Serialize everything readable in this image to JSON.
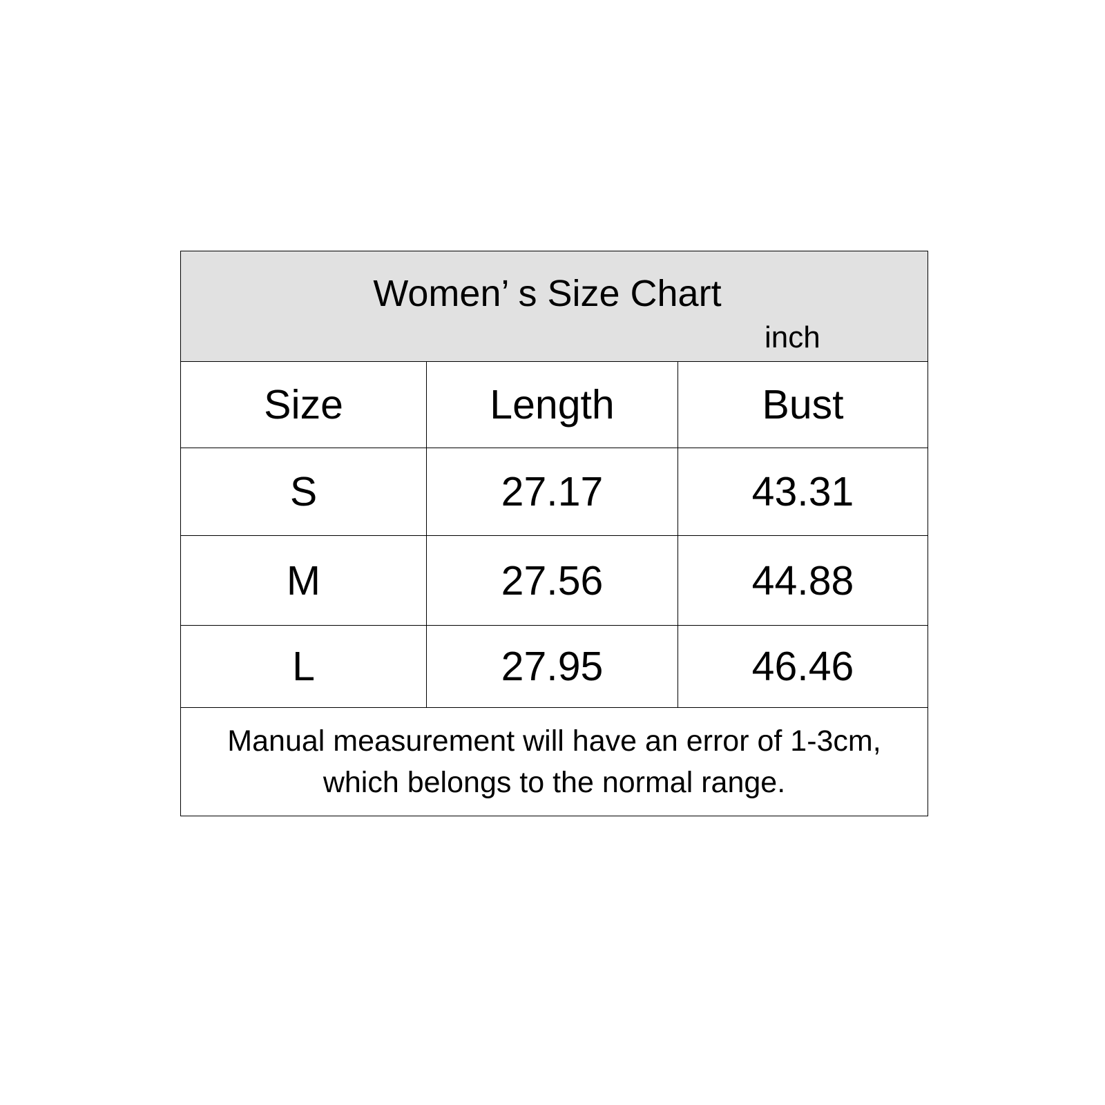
{
  "title": "Women’ s Size Chart",
  "unit": "inch",
  "headers": [
    "Size",
    "Length",
    "Bust"
  ],
  "rows": [
    [
      "S",
      "27.17",
      "43.31"
    ],
    [
      "M",
      "27.56",
      "44.88"
    ],
    [
      "L",
      "27.95",
      "46.46"
    ]
  ],
  "note_line1": "Manual measurement will have an error of 1-3cm,",
  "note_line2": "which belongs to the normal range.",
  "colors": {
    "header_bg": "#e1e1e1",
    "border": "#000000"
  }
}
